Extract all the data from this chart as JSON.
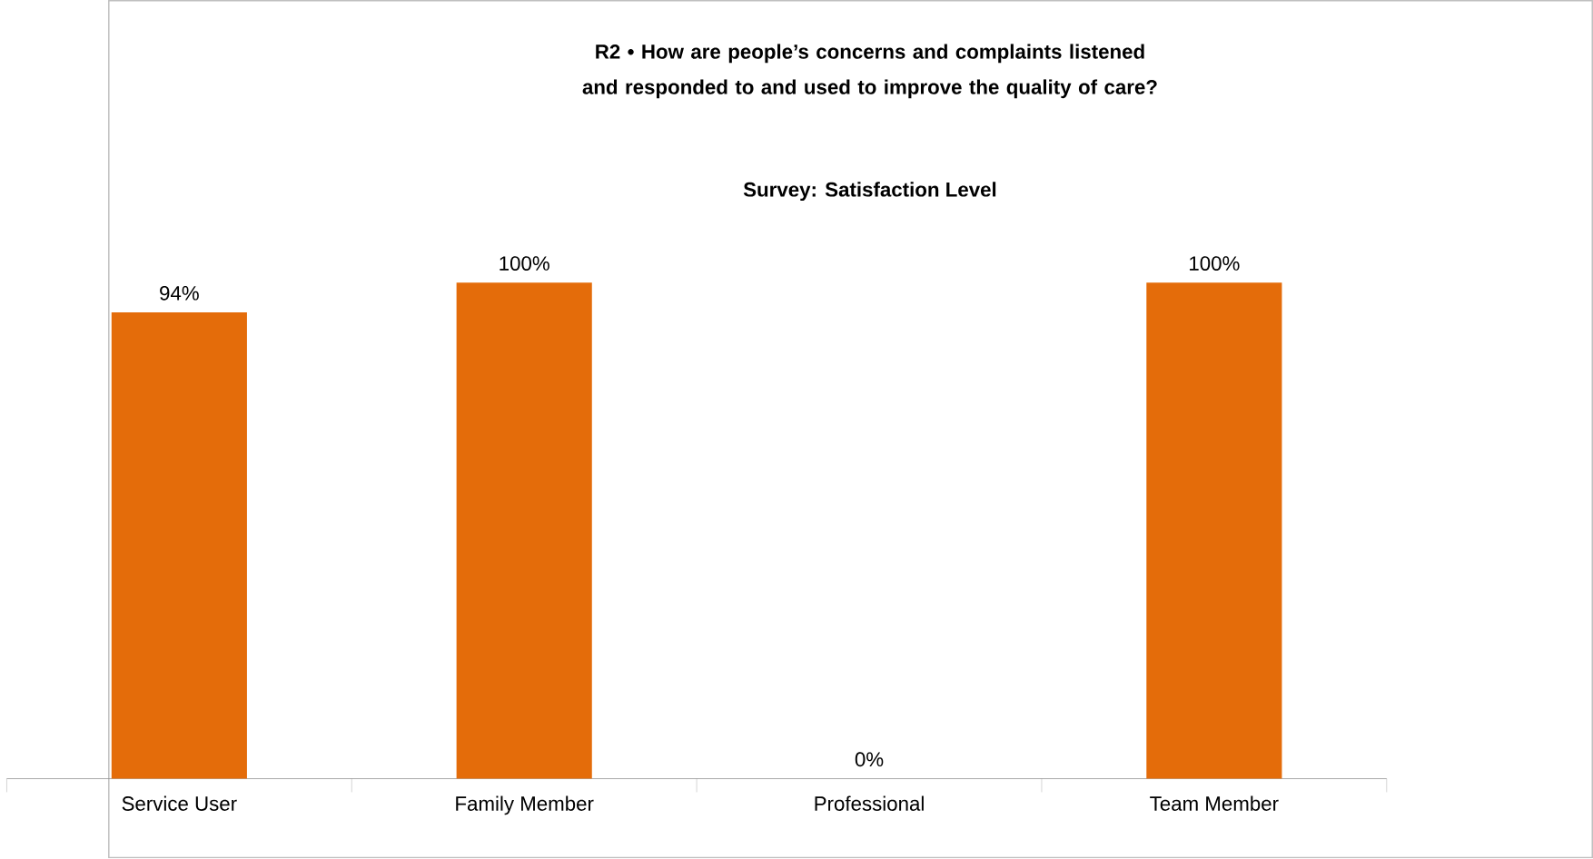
{
  "chart_data": {
    "type": "bar",
    "title": "R2 • How are people’s concerns and complaints listened and responded to and used to improve the quality of care?",
    "subtitle": "Survey: Satisfaction Level",
    "categories": [
      "Service User",
      "Family Member",
      "Professional",
      "Team Member"
    ],
    "values": [
      94,
      100,
      0,
      100
    ],
    "value_labels": [
      "94%",
      "100%",
      "0%",
      "100%"
    ],
    "color": "#e46c0a"
  }
}
